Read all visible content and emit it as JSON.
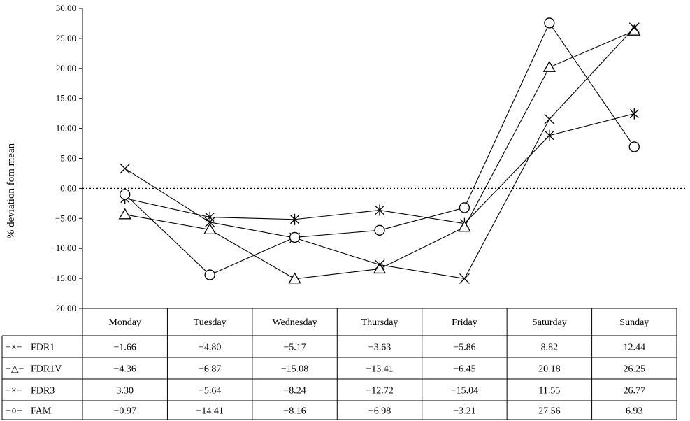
{
  "chart_data": {
    "type": "line",
    "ylabel": "% deviation fom mean",
    "ylim": [
      -20,
      30
    ],
    "yticks": [
      "30.00",
      "25.00",
      "20.00",
      "15.00",
      "10.00",
      "5.00",
      "0.00",
      "−5.00",
      "−10.00",
      "−15.00",
      "−20.00"
    ],
    "ytick_values": [
      30,
      25,
      20,
      15,
      10,
      5,
      0,
      -5,
      -10,
      -15,
      -20
    ],
    "reference_line": 0,
    "categories": [
      "Monday",
      "Tuesday",
      "Wednesday",
      "Thursday",
      "Friday",
      "Saturday",
      "Sunday"
    ],
    "series": [
      {
        "name": "FDR1",
        "marker": "asterisk",
        "legend_symbol": "−×−",
        "values": [
          -1.66,
          -4.8,
          -5.17,
          -3.63,
          -5.86,
          8.82,
          12.44
        ],
        "labels": [
          "−1.66",
          "−4.80",
          "−5.17",
          "−3.63",
          "−5.86",
          "8.82",
          "12.44"
        ]
      },
      {
        "name": "FDR1V",
        "marker": "triangle",
        "legend_symbol": "−△−",
        "values": [
          -4.36,
          -6.87,
          -15.08,
          -13.41,
          -6.45,
          20.18,
          26.25
        ],
        "labels": [
          "−4.36",
          "−6.87",
          "−15.08",
          "−13.41",
          "−6.45",
          "20.18",
          "26.25"
        ]
      },
      {
        "name": "FDR3",
        "marker": "x",
        "legend_symbol": "−×−",
        "values": [
          3.3,
          -5.64,
          -8.24,
          -12.72,
          -15.04,
          11.55,
          26.77
        ],
        "labels": [
          "3.30",
          "−5.64",
          "−8.24",
          "−12.72",
          "−15.04",
          "11.55",
          "26.77"
        ]
      },
      {
        "name": "FAM",
        "marker": "circle",
        "legend_symbol": "−○−",
        "values": [
          -0.97,
          -14.41,
          -8.16,
          -6.98,
          -3.21,
          27.56,
          6.93
        ],
        "labels": [
          "−0.97",
          "−14.41",
          "−8.16",
          "−6.98",
          "−3.21",
          "27.56",
          "6.93"
        ]
      }
    ]
  }
}
